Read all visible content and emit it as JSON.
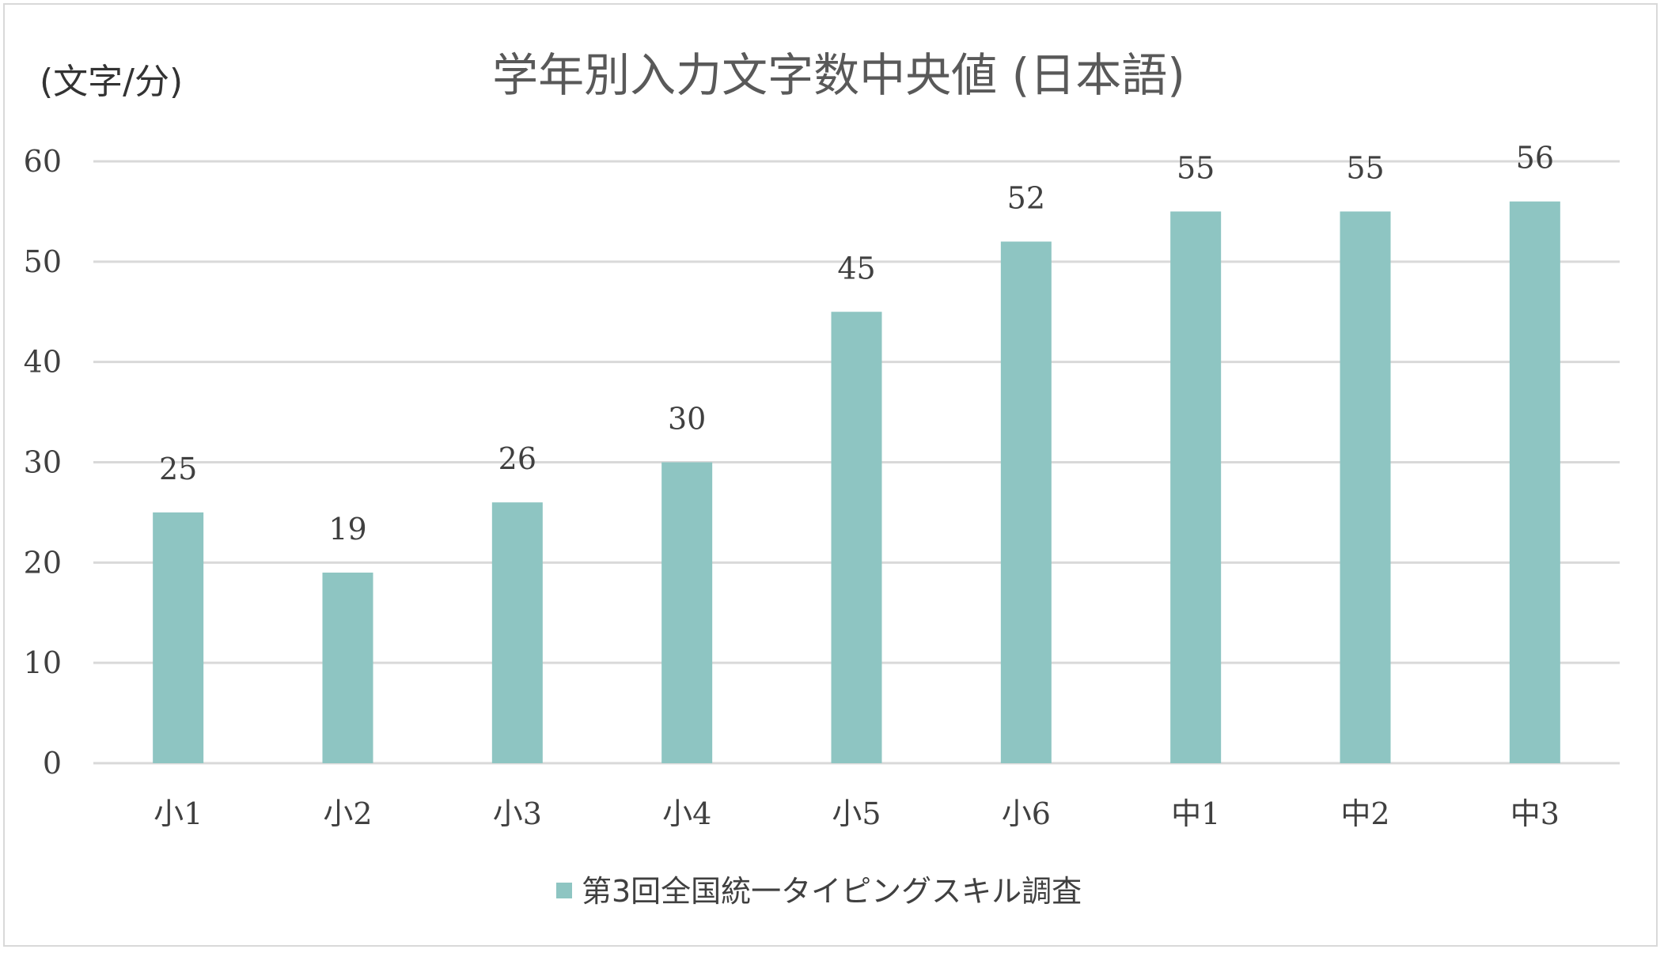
{
  "chart_data": {
    "type": "bar",
    "title": "学年別入力文字数中央値 (日本語)",
    "ylabel": "(文字/分)",
    "xlabel": "",
    "categories": [
      "小1",
      "小2",
      "小3",
      "小4",
      "小5",
      "小6",
      "中1",
      "中2",
      "中3"
    ],
    "series": [
      {
        "name": "第3回全国統一タイピングスキル調査",
        "values": [
          25,
          19,
          26,
          30,
          45,
          52,
          55,
          55,
          56
        ],
        "color": "#8ec5c2"
      }
    ],
    "ylim": [
      0,
      60
    ],
    "yticks": [
      0,
      10,
      20,
      30,
      40,
      50,
      60
    ],
    "grid": true,
    "legend": "bottom",
    "colors": {
      "gridline": "#d9d9d9",
      "axis": "#d9d9d9"
    }
  }
}
